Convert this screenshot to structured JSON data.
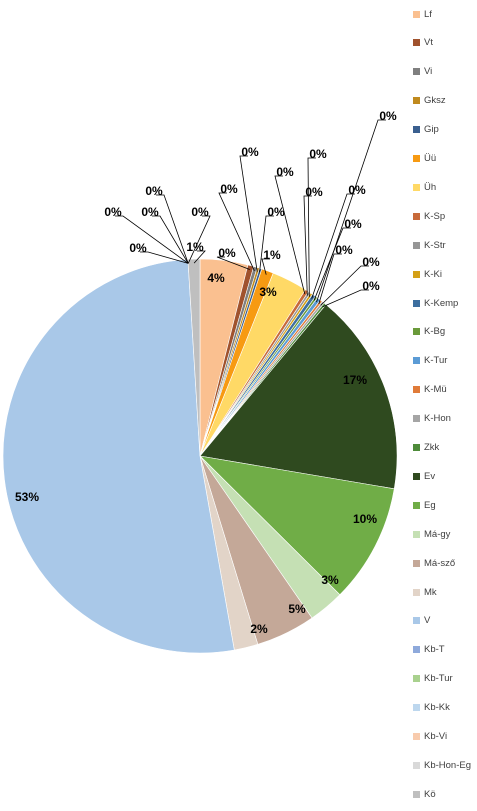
{
  "chart_data": {
    "type": "pie",
    "title": "",
    "legend_position": "right",
    "categories": [
      "Lf",
      "Vt",
      "Vi",
      "Gksz",
      "Gip",
      "Üü",
      "Üh",
      "K-Sp",
      "K-Str",
      "K-Ki",
      "K-Kemp",
      "K-Bg",
      "K-Tur",
      "K-Mü",
      "K-Hon",
      "Zkk",
      "Ev",
      "Eg",
      "Má-gy",
      "Má-sző",
      "Mk",
      "V",
      "Kb-T",
      "Kb-Tur",
      "Kb-Kk",
      "Kb-Vi",
      "Kb-Hon-Eg",
      "Kö"
    ],
    "values": [
      4.0,
      0.5,
      0.3,
      0.2,
      0.2,
      1.0,
      3.0,
      0.3,
      0.2,
      0.2,
      0.3,
      0.2,
      0.3,
      0.2,
      0.2,
      0.2,
      17.0,
      10.0,
      3.0,
      5.0,
      2.0,
      53.0,
      0.0,
      0.0,
      0.0,
      0.0,
      0.0,
      1.0
    ],
    "labels": [
      "4%",
      "0%",
      "0%",
      "0%",
      "0%",
      "1%",
      "3%",
      "0%",
      "0%",
      "0%",
      "0%",
      "0%",
      "0%",
      "0%",
      "0%",
      "0%",
      "17%",
      "10%",
      "3%",
      "5%",
      "2%",
      "53%",
      "0%",
      "0%",
      "0%",
      "0%",
      "0%",
      "1%"
    ],
    "colors": [
      "#FAC090",
      "#A0522D",
      "#7F7F7F",
      "#C08A1E",
      "#3A5F8F",
      "#F79A12",
      "#FFD966",
      "#C86A3A",
      "#969696",
      "#D4A017",
      "#3C6E9F",
      "#6A9A3A",
      "#5B9BD5",
      "#E07B39",
      "#A5A5A5",
      "#4E8B3A",
      "#2F4A1F",
      "#70AD47",
      "#C5E0B4",
      "#C4A898",
      "#E2D4C8",
      "#A9C8E8",
      "#8EA9DB",
      "#A9D18E",
      "#BDD7EE",
      "#F8CBAD",
      "#D9D9D9",
      "#BFBFBF"
    ]
  }
}
